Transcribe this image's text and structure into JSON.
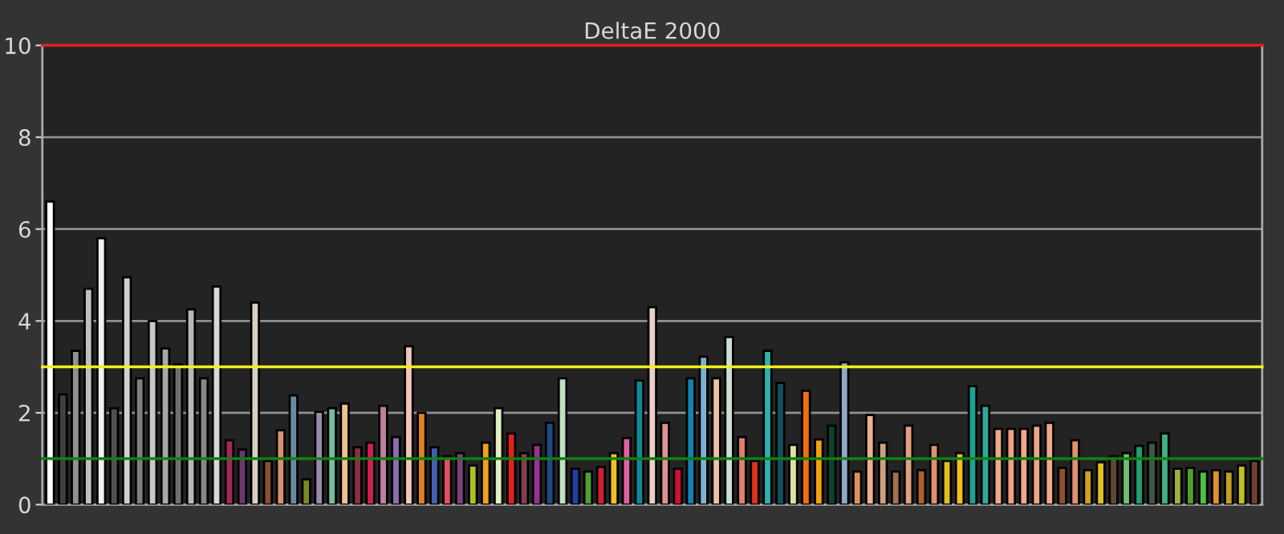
{
  "chart_data": {
    "type": "bar",
    "title": "DeltaE 2000",
    "categories": [
      null,
      null,
      null,
      null,
      null,
      null,
      null,
      null,
      null,
      null,
      null,
      null,
      null,
      null,
      null,
      null,
      null,
      null,
      null,
      null,
      null,
      null,
      null,
      null,
      null,
      null,
      null,
      null,
      null,
      null,
      null,
      null,
      null,
      null,
      null,
      null,
      null,
      null,
      null,
      null,
      null,
      null,
      null,
      null,
      null,
      null,
      null,
      null,
      null,
      null,
      null,
      null,
      null,
      null,
      null,
      null,
      null,
      null,
      null,
      null,
      null,
      null,
      null,
      null,
      null,
      null,
      null,
      null,
      null,
      null,
      null,
      null,
      null,
      null,
      null,
      null,
      null,
      null,
      null,
      null,
      null,
      null,
      null,
      null,
      null,
      null,
      null,
      null,
      null,
      null,
      null,
      null,
      null,
      null,
      null
    ],
    "values": [
      6.6,
      2.4,
      3.35,
      4.7,
      5.8,
      2.1,
      4.95,
      2.75,
      4.0,
      3.4,
      3.05,
      4.25,
      2.75,
      4.75,
      1.4,
      1.2,
      4.4,
      0.95,
      1.62,
      2.38,
      0.55,
      2.02,
      2.1,
      2.2,
      1.25,
      1.35,
      2.15,
      1.47,
      3.45,
      2.0,
      1.25,
      1.05,
      1.12,
      0.85,
      1.35,
      2.1,
      1.55,
      1.12,
      1.3,
      1.78,
      2.75,
      0.78,
      0.72,
      0.82,
      1.12,
      1.45,
      2.7,
      4.3,
      1.78,
      0.78,
      2.75,
      3.22,
      2.75,
      3.65,
      1.47,
      0.95,
      3.35,
      2.65,
      1.3,
      2.48,
      1.42,
      1.72,
      3.1,
      0.72,
      1.95,
      1.35,
      0.72,
      1.72,
      0.75,
      1.3,
      0.95,
      1.12,
      2.58,
      2.15,
      1.65,
      1.65,
      1.65,
      1.72,
      1.78,
      0.8,
      1.4,
      0.75,
      0.92,
      1.05,
      1.12,
      1.28,
      1.35,
      1.55,
      0.78,
      0.8,
      0.72,
      0.75,
      0.72,
      0.85,
      0.95
    ],
    "colors": [
      "#ffffff",
      "#404040",
      "#909090",
      "#c0c0c0",
      "#f0f0f0",
      "#505050",
      "#d0d0d0",
      "#808080",
      "#c8c8c8",
      "#a8a8a8",
      "#707070",
      "#b8b8b8",
      "#888888",
      "#d8d8d8",
      "#a0285a",
      "#6a3a6a",
      "#d8d0c0",
      "#8a5030",
      "#d89070",
      "#6a8aa0",
      "#7a8a20",
      "#9a8ab0",
      "#70c0a0",
      "#f0c090",
      "#8a3040",
      "#d02050",
      "#c080a0",
      "#8a70b0",
      "#f0c8b8",
      "#e08020",
      "#4060b0",
      "#e05060",
      "#804080",
      "#b0c020",
      "#f0a020",
      "#e0f0c0",
      "#e02020",
      "#804050",
      "#9a3090",
      "#204a80",
      "#c0e0c0",
      "#2040a0",
      "#50a030",
      "#d02030",
      "#f0c020",
      "#e060a0",
      "#108898",
      "#e8d0c8",
      "#e09090",
      "#d01030",
      "#1880b0",
      "#80b0d0",
      "#f0c0a8",
      "#c8e0d0",
      "#e08070",
      "#e03020",
      "#30b0b0",
      "#105060",
      "#e0e0a0",
      "#f07010",
      "#f0a010",
      "#104030",
      "#90a8c8",
      "#e09060",
      "#f0b090",
      "#d0a080",
      "#a07050",
      "#e0a080",
      "#b06030",
      "#e09070",
      "#e0c020",
      "#f0c020",
      "#20a090",
      "#30a898",
      "#f0a888",
      "#f0a080",
      "#f0a888",
      "#e8a888",
      "#f0a888",
      "#905030",
      "#e09070",
      "#d0a020",
      "#e0c020",
      "#604830",
      "#70c070",
      "#20a070",
      "#405848",
      "#40b080",
      "#a0b040",
      "#50a030",
      "#50c040",
      "#e09030",
      "#c0a020",
      "#c0c020",
      "#704030"
    ],
    "ylim": [
      0,
      10
    ],
    "yticks": [
      0,
      2,
      4,
      6,
      8,
      10
    ],
    "grid": "y",
    "ref_lines": [
      {
        "axis": "y",
        "value": 10,
        "color": "#e02020"
      },
      {
        "axis": "y",
        "value": 3,
        "color": "#f0f020"
      },
      {
        "axis": "y",
        "value": 1,
        "color": "#108010"
      }
    ]
  }
}
